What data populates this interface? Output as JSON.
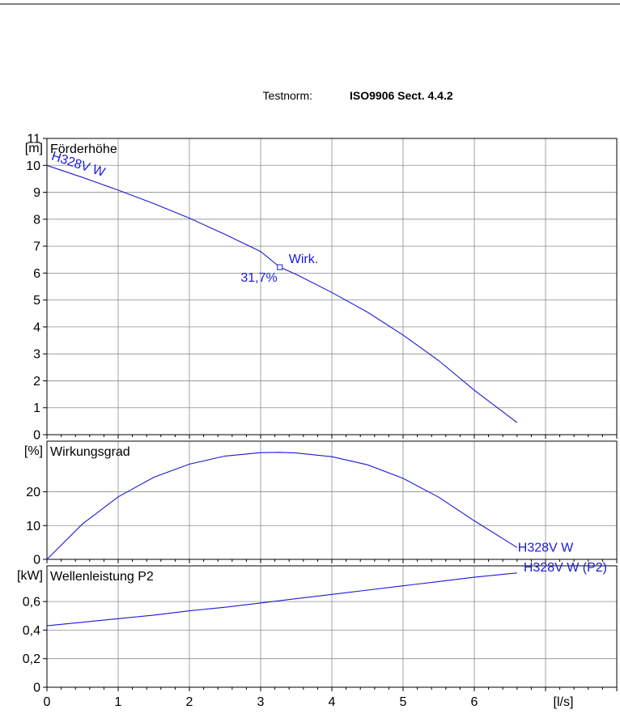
{
  "standard": {
    "label": "Testnorm:",
    "value": "ISO9906 Sect. 4.4.2"
  },
  "chart_data": [
    {
      "type": "line",
      "panel": "head",
      "title": "Förderhöhe",
      "ylabel": "[m]",
      "xlabel": "[l/s]",
      "xlim": [
        0,
        8
      ],
      "ylim": [
        0,
        11
      ],
      "xticks": [
        "0",
        "1",
        "2",
        "3",
        "4",
        "5",
        "6"
      ],
      "yticks": [
        "0",
        "1",
        "2",
        "3",
        "4",
        "5",
        "6",
        "7",
        "8",
        "9",
        "10",
        "11"
      ],
      "grid": true,
      "series": [
        {
          "name": "H328V W",
          "color": "#1a1ad6",
          "x": [
            0,
            0.5,
            1,
            1.5,
            2,
            2.5,
            3,
            3.27,
            3.5,
            4,
            4.5,
            5,
            5.5,
            6,
            6.6
          ],
          "y": [
            10.0,
            9.55,
            9.08,
            8.58,
            8.04,
            7.44,
            6.8,
            6.22,
            5.95,
            5.28,
            4.55,
            3.7,
            2.75,
            1.65,
            0.45
          ]
        }
      ],
      "annotations": [
        {
          "text": "Wirk.",
          "x": 3.27,
          "y": 6.22
        },
        {
          "text": "31,7%",
          "x": 3.27,
          "y": 6.22
        }
      ]
    },
    {
      "type": "line",
      "panel": "efficiency",
      "title": "Wirkungsgrad",
      "ylabel": "[%]",
      "xlim": [
        0,
        8
      ],
      "ylim": [
        0,
        35
      ],
      "yticks": [
        "0",
        "10",
        "20"
      ],
      "grid": true,
      "series": [
        {
          "name": "H328V W",
          "color": "#1a1ad6",
          "x": [
            0,
            0.5,
            1,
            1.5,
            2,
            2.5,
            3,
            3.27,
            3.5,
            4,
            4.5,
            5,
            5.5,
            6,
            6.6
          ],
          "y": [
            0,
            10.5,
            18.5,
            24.3,
            28.2,
            30.6,
            31.6,
            31.7,
            31.5,
            30.4,
            28.0,
            24.0,
            18.4,
            11.4,
            3.5
          ]
        }
      ]
    },
    {
      "type": "line",
      "panel": "power",
      "title": "Wellenleistung P2",
      "ylabel": "[kW]",
      "xlim": [
        0,
        8
      ],
      "ylim": [
        0,
        0.85
      ],
      "yticks": [
        "0",
        "0,2",
        "0,4",
        "0,6"
      ],
      "grid": true,
      "series": [
        {
          "name": "H328V W (P2)",
          "color": "#1a1ad6",
          "x": [
            0,
            0.5,
            1,
            1.5,
            2,
            2.5,
            3,
            3.5,
            4,
            4.5,
            5,
            5.5,
            6,
            6.6
          ],
          "y": [
            0.43,
            0.455,
            0.48,
            0.505,
            0.535,
            0.56,
            0.59,
            0.62,
            0.65,
            0.68,
            0.71,
            0.74,
            0.77,
            0.8
          ]
        }
      ]
    }
  ]
}
